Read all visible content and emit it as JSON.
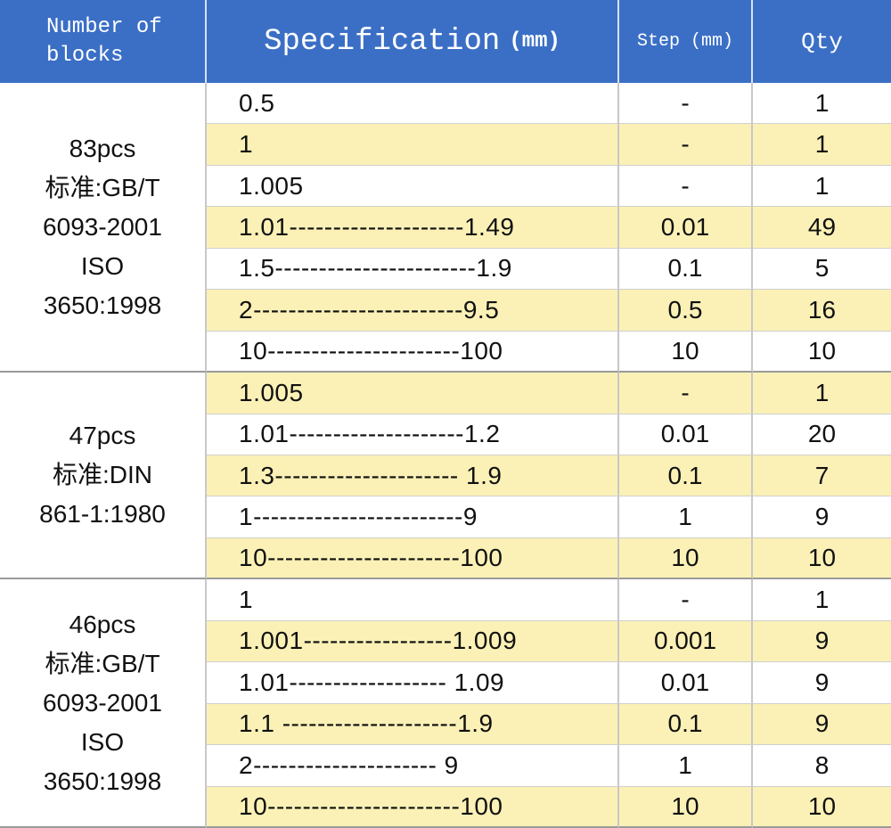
{
  "header": {
    "blocks": [
      "Number of",
      "blocks"
    ],
    "specification": "Specification",
    "spec_unit": "(mm)",
    "step": "Step (mm)",
    "qty": "Qty"
  },
  "groups": [
    {
      "label": [
        "83pcs",
        "标准:GB/T",
        "6093-2001",
        "ISO",
        "3650:1998"
      ],
      "rows": [
        [
          "0.5",
          "-",
          "1"
        ],
        [
          "1",
          "-",
          "1"
        ],
        [
          "1.005",
          "-",
          "1"
        ],
        [
          "1.01--------------------1.49",
          "0.01",
          "49"
        ],
        [
          "1.5-----------------------1.9",
          "0.1",
          "5"
        ],
        [
          "2------------------------9.5",
          "0.5",
          "16"
        ],
        [
          "10----------------------100",
          "10",
          "10"
        ]
      ]
    },
    {
      "label": [
        "47pcs",
        "标准:DIN",
        "861-1:1980"
      ],
      "rows": [
        [
          "1.005",
          "-",
          "1"
        ],
        [
          "1.01--------------------1.2",
          "0.01",
          "20"
        ],
        [
          "1.3--------------------- 1.9",
          "0.1",
          "7"
        ],
        [
          "1------------------------9",
          "1",
          "9"
        ],
        [
          "10----------------------100",
          "10",
          "10"
        ]
      ]
    },
    {
      "label": [
        "46pcs",
        "标准:GB/T",
        "6093-2001",
        "ISO",
        "3650:1998"
      ],
      "rows": [
        [
          "1",
          "-",
          "1"
        ],
        [
          "1.001-----------------1.009",
          "0.001",
          "9"
        ],
        [
          "1.01------------------ 1.09",
          "0.01",
          "9"
        ],
        [
          "1.1 --------------------1.9",
          "0.1",
          "9"
        ],
        [
          "2--------------------- 9",
          "1",
          "8"
        ],
        [
          "10----------------------100",
          "10",
          "10"
        ]
      ]
    }
  ]
}
